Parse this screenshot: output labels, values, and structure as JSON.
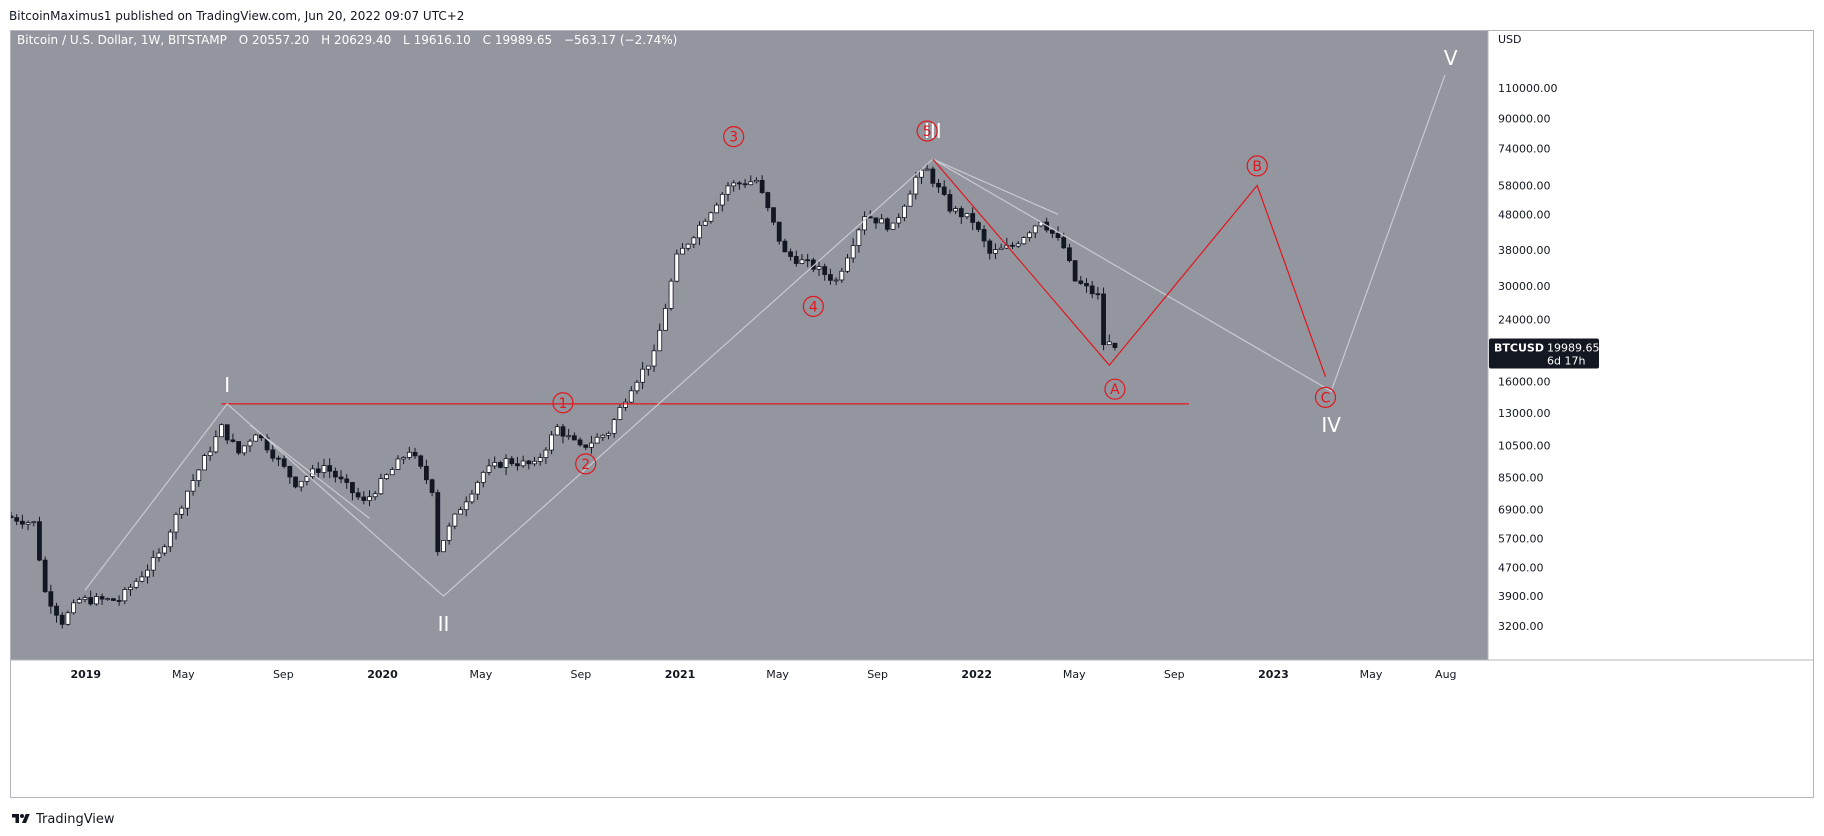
{
  "header": {
    "publisher_line": "BitcoinMaximus1 published on TradingView.com, Jun 20, 2022 09:07 UTC+2"
  },
  "footer": {
    "brand": "TradingView",
    "logo_icon": "tradingview-logo-icon"
  },
  "colors": {
    "plot_bg": "#94969f",
    "axis_bg": "#ffffff",
    "candle_up": "#ffffff",
    "candle_down": "#131722",
    "red_count": "#e0161c",
    "white_count": "#ffffff",
    "gray_line": "#c8cad1",
    "price_label_bg": "#131722"
  },
  "chart_data": {
    "type": "candlestick",
    "symbol_title": "Bitcoin / U.S. Dollar, 1W, BITSTAMP",
    "ohlc": {
      "open_label": "O",
      "open": "20557.20",
      "high_label": "H",
      "high": "20629.40",
      "low_label": "L",
      "low": "19616.10",
      "close_label": "C",
      "close": "19989.65",
      "change": "−563.17 (−2.74%)"
    },
    "y_axis": {
      "unit": "USD",
      "scale": "log",
      "ylim": [
        2700,
        150000
      ],
      "ticks": [
        3200,
        3900,
        4700,
        5700,
        6900,
        8500,
        10500,
        13000,
        16000,
        24000,
        30000,
        38000,
        48000,
        58000,
        74000,
        90000,
        110000
      ],
      "tick_labels": [
        "3200.00",
        "3900.00",
        "4700.00",
        "5700.00",
        "6900.00",
        "8500.00",
        "10500.00",
        "13000.00",
        "16000.00",
        "24000.00",
        "30000.00",
        "38000.00",
        "48000.00",
        "58000.00",
        "74000.00",
        "90000.00",
        "110000.00"
      ]
    },
    "x_axis": {
      "time_range": [
        "2018-10-01",
        "2023-09-01"
      ],
      "ticks": [
        {
          "date": "2019-01-01",
          "label": "2019",
          "bold": true
        },
        {
          "date": "2019-05-01",
          "label": "May",
          "bold": false
        },
        {
          "date": "2019-09-01",
          "label": "Sep",
          "bold": false
        },
        {
          "date": "2020-01-01",
          "label": "2020",
          "bold": true
        },
        {
          "date": "2020-05-01",
          "label": "May",
          "bold": false
        },
        {
          "date": "2020-09-01",
          "label": "Sep",
          "bold": false
        },
        {
          "date": "2021-01-01",
          "label": "2021",
          "bold": true
        },
        {
          "date": "2021-05-01",
          "label": "May",
          "bold": false
        },
        {
          "date": "2021-09-01",
          "label": "Sep",
          "bold": false
        },
        {
          "date": "2022-01-01",
          "label": "2022",
          "bold": true
        },
        {
          "date": "2022-05-01",
          "label": "May",
          "bold": false
        },
        {
          "date": "2022-09-01",
          "label": "Sep",
          "bold": false
        },
        {
          "date": "2023-01-01",
          "label": "2023",
          "bold": true
        },
        {
          "date": "2023-05-01",
          "label": "May",
          "bold": false
        },
        {
          "date": "2023-08-01",
          "label": "Aug",
          "bold": false
        }
      ]
    },
    "series_anchors": [
      [
        "2018-10-01",
        6600
      ],
      [
        "2018-11-05",
        6300
      ],
      [
        "2018-11-19",
        4000
      ],
      [
        "2018-12-10",
        3300
      ],
      [
        "2018-12-31",
        3800
      ],
      [
        "2019-02-18",
        3800
      ],
      [
        "2019-04-08",
        5100
      ],
      [
        "2019-05-13",
        7800
      ],
      [
        "2019-06-24",
        11800
      ],
      [
        "2019-07-15",
        10000
      ],
      [
        "2019-08-05",
        11500
      ],
      [
        "2019-09-23",
        8200
      ],
      [
        "2019-10-28",
        9200
      ],
      [
        "2019-12-16",
        7200
      ],
      [
        "2020-02-10",
        10200
      ],
      [
        "2020-03-09",
        7900
      ],
      [
        "2020-03-16",
        5300
      ],
      [
        "2020-04-13",
        7000
      ],
      [
        "2020-05-11",
        8800
      ],
      [
        "2020-06-08",
        9500
      ],
      [
        "2020-07-13",
        9200
      ],
      [
        "2020-08-10",
        11800
      ],
      [
        "2020-09-07",
        10300
      ],
      [
        "2020-10-12",
        11500
      ],
      [
        "2020-11-09",
        15500
      ],
      [
        "2020-12-07",
        19000
      ],
      [
        "2021-01-04",
        36000
      ],
      [
        "2021-02-08",
        47000
      ],
      [
        "2021-03-08",
        58000
      ],
      [
        "2021-04-12",
        60000
      ],
      [
        "2021-05-17",
        37000
      ],
      [
        "2021-06-21",
        34000
      ],
      [
        "2021-07-19",
        31000
      ],
      [
        "2021-08-23",
        48000
      ],
      [
        "2021-09-27",
        44000
      ],
      [
        "2021-10-25",
        61000
      ],
      [
        "2021-11-08",
        64000
      ],
      [
        "2021-12-06",
        50000
      ],
      [
        "2022-01-03",
        46000
      ],
      [
        "2022-01-24",
        37000
      ],
      [
        "2022-02-21",
        39000
      ],
      [
        "2022-03-28",
        46500
      ],
      [
        "2022-04-25",
        38500
      ],
      [
        "2022-05-09",
        31000
      ],
      [
        "2022-06-06",
        28000
      ],
      [
        "2022-06-13",
        20500
      ]
    ],
    "last_candle": {
      "date": "2022-06-20",
      "open": 20557.2,
      "high": 20629.4,
      "low": 19616.1,
      "close": 19989.65
    },
    "last_price_tag": {
      "symbol": "BTCUSD",
      "price": "19989.65",
      "countdown": "6d 17h",
      "value": 19989.65
    },
    "horizontal_line": {
      "price": 13800,
      "from": "2019-06-17",
      "to": "2022-09-19",
      "color": "red"
    },
    "gray_paths": [
      [
        [
          "2018-12-31",
          4050
        ],
        [
          "2019-06-24",
          13800
        ],
        [
          "2020-03-16",
          3900
        ],
        [
          "2021-11-08",
          69000
        ],
        [
          "2023-03-13",
          15000
        ],
        [
          "2023-07-31",
          120000
        ]
      ],
      [
        [
          "2019-07-22",
          12000
        ],
        [
          "2019-12-16",
          6500
        ]
      ],
      [
        [
          "2021-11-08",
          69000
        ],
        [
          "2022-04-11",
          48000
        ]
      ]
    ],
    "red_paths": [
      [
        [
          "2021-11-08",
          69000
        ],
        [
          "2022-06-13",
          17800
        ],
        [
          "2022-12-12",
          58000
        ],
        [
          "2023-03-06",
          16500
        ]
      ]
    ],
    "wave_labels": [
      {
        "text": "I",
        "date": "2019-06-24",
        "price": 15600,
        "style": "roman"
      },
      {
        "text": "II",
        "date": "2020-03-16",
        "price": 3250,
        "style": "roman"
      },
      {
        "text": "III",
        "date": "2021-11-08",
        "price": 83000,
        "style": "roman"
      },
      {
        "text": "IV",
        "date": "2023-03-13",
        "price": 12000,
        "style": "roman"
      },
      {
        "text": "V",
        "date": "2023-08-07",
        "price": 134000,
        "style": "roman"
      },
      {
        "text": "1",
        "date": "2020-08-10",
        "price": 13900,
        "style": "circled"
      },
      {
        "text": "2",
        "date": "2020-09-07",
        "price": 9300,
        "style": "circled"
      },
      {
        "text": "3",
        "date": "2021-03-08",
        "price": 80000,
        "style": "circled"
      },
      {
        "text": "4",
        "date": "2021-06-14",
        "price": 26200,
        "style": "circled"
      },
      {
        "text": "5",
        "date": "2021-11-01",
        "price": 83000,
        "style": "circled"
      },
      {
        "text": "A",
        "date": "2022-06-20",
        "price": 15200,
        "style": "circled"
      },
      {
        "text": "B",
        "date": "2022-12-12",
        "price": 66000,
        "style": "circled"
      },
      {
        "text": "C",
        "date": "2023-03-06",
        "price": 14400,
        "style": "circled"
      }
    ]
  }
}
